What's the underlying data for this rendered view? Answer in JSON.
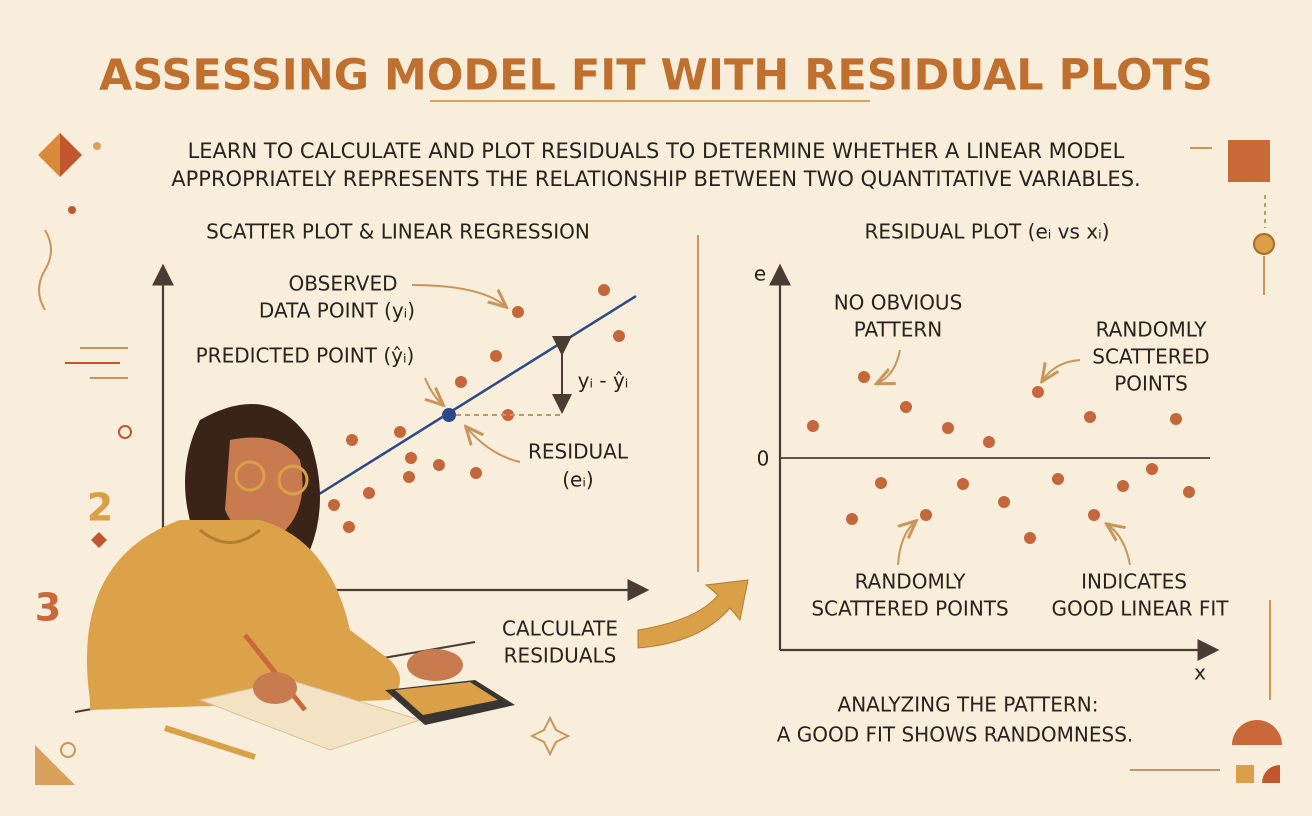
{
  "header": {
    "title": "ASSESSING MODEL FIT WITH RESIDUAL PLOTS",
    "subtitle": [
      "LEARN TO CALCULATE AND PLOT RESIDUALS TO DETERMINE WHETHER A LINEAR MODEL",
      "APPROPRIATELY REPRESENTS THE RELATIONSHIP BETWEEN TWO QUANTITATIVE VARIABLES."
    ]
  },
  "left_panel": {
    "title": "SCATTER PLOT & LINEAR REGRESSION",
    "observed": [
      "OBSERVED",
      "DATA POINT (yᵢ)"
    ],
    "predicted": "PREDICTED POINT (ŷᵢ)",
    "difference": "yᵢ - ŷᵢ",
    "residual": [
      "RESIDUAL",
      "(eᵢ)"
    ],
    "calculate": [
      "CALCULATE",
      "RESIDUALS"
    ],
    "decor_numbers": [
      "2",
      "3"
    ]
  },
  "right_panel": {
    "title": "RESIDUAL PLOT (eᵢ vs xᵢ)",
    "y_axis_label": "e",
    "x_axis_label": "x",
    "zero_label": "0",
    "no_pattern": [
      "NO OBVIOUS",
      "PATTERN"
    ],
    "random_top": [
      "RANDOMLY",
      "SCATTERED",
      "POINTS"
    ],
    "random_bottom": [
      "RANDOMLY",
      "SCATTERED POINTS"
    ],
    "good_fit": [
      "INDICATES",
      "GOOD LINEAR FIT"
    ]
  },
  "footer": [
    "ANALYZING THE PATTERN:",
    "A GOOD FIT SHOWS RANDOMNESS."
  ]
}
